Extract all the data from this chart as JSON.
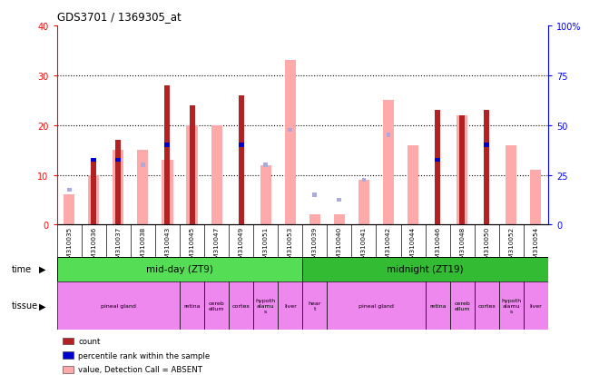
{
  "title": "GDS3701 / 1369305_at",
  "samples": [
    "GSM310035",
    "GSM310036",
    "GSM310037",
    "GSM310038",
    "GSM310043",
    "GSM310045",
    "GSM310047",
    "GSM310049",
    "GSM310051",
    "GSM310053",
    "GSM310039",
    "GSM310040",
    "GSM310041",
    "GSM310042",
    "GSM310044",
    "GSM310046",
    "GSM310048",
    "GSM310050",
    "GSM310052",
    "GSM310054"
  ],
  "count_values": [
    0,
    13,
    17,
    0,
    28,
    24,
    0,
    26,
    0,
    0,
    0,
    0,
    0,
    0,
    0,
    23,
    22,
    23,
    0,
    0
  ],
  "rank_values_left": [
    0,
    13,
    13,
    0,
    16,
    0,
    0,
    16,
    0,
    0,
    0,
    0,
    0,
    0,
    0,
    13,
    0,
    16,
    0,
    0
  ],
  "value_absent": [
    6,
    10,
    15,
    15,
    13,
    20,
    20,
    0,
    12,
    33,
    2,
    2,
    9,
    25,
    16,
    0,
    22,
    0,
    16,
    11
  ],
  "rank_absent_left": [
    7,
    12,
    0,
    12,
    0,
    0,
    0,
    0,
    12,
    19,
    6,
    5,
    9,
    18,
    0,
    0,
    0,
    0,
    0,
    0
  ],
  "ylim_left": [
    0,
    40
  ],
  "ylim_right": [
    0,
    100
  ],
  "yticks_left": [
    0,
    10,
    20,
    30,
    40
  ],
  "yticks_right": [
    0,
    25,
    50,
    75,
    100
  ],
  "ytick_labels_right": [
    "0",
    "25",
    "50",
    "75",
    "100%"
  ],
  "color_count": "#b22222",
  "color_rank": "#0000cc",
  "color_value_absent": "#ffaaaa",
  "color_rank_absent": "#aaaadd",
  "time_bg1": "#55dd55",
  "time_bg2": "#33bb33",
  "tissue_bg": "#ee88ee"
}
